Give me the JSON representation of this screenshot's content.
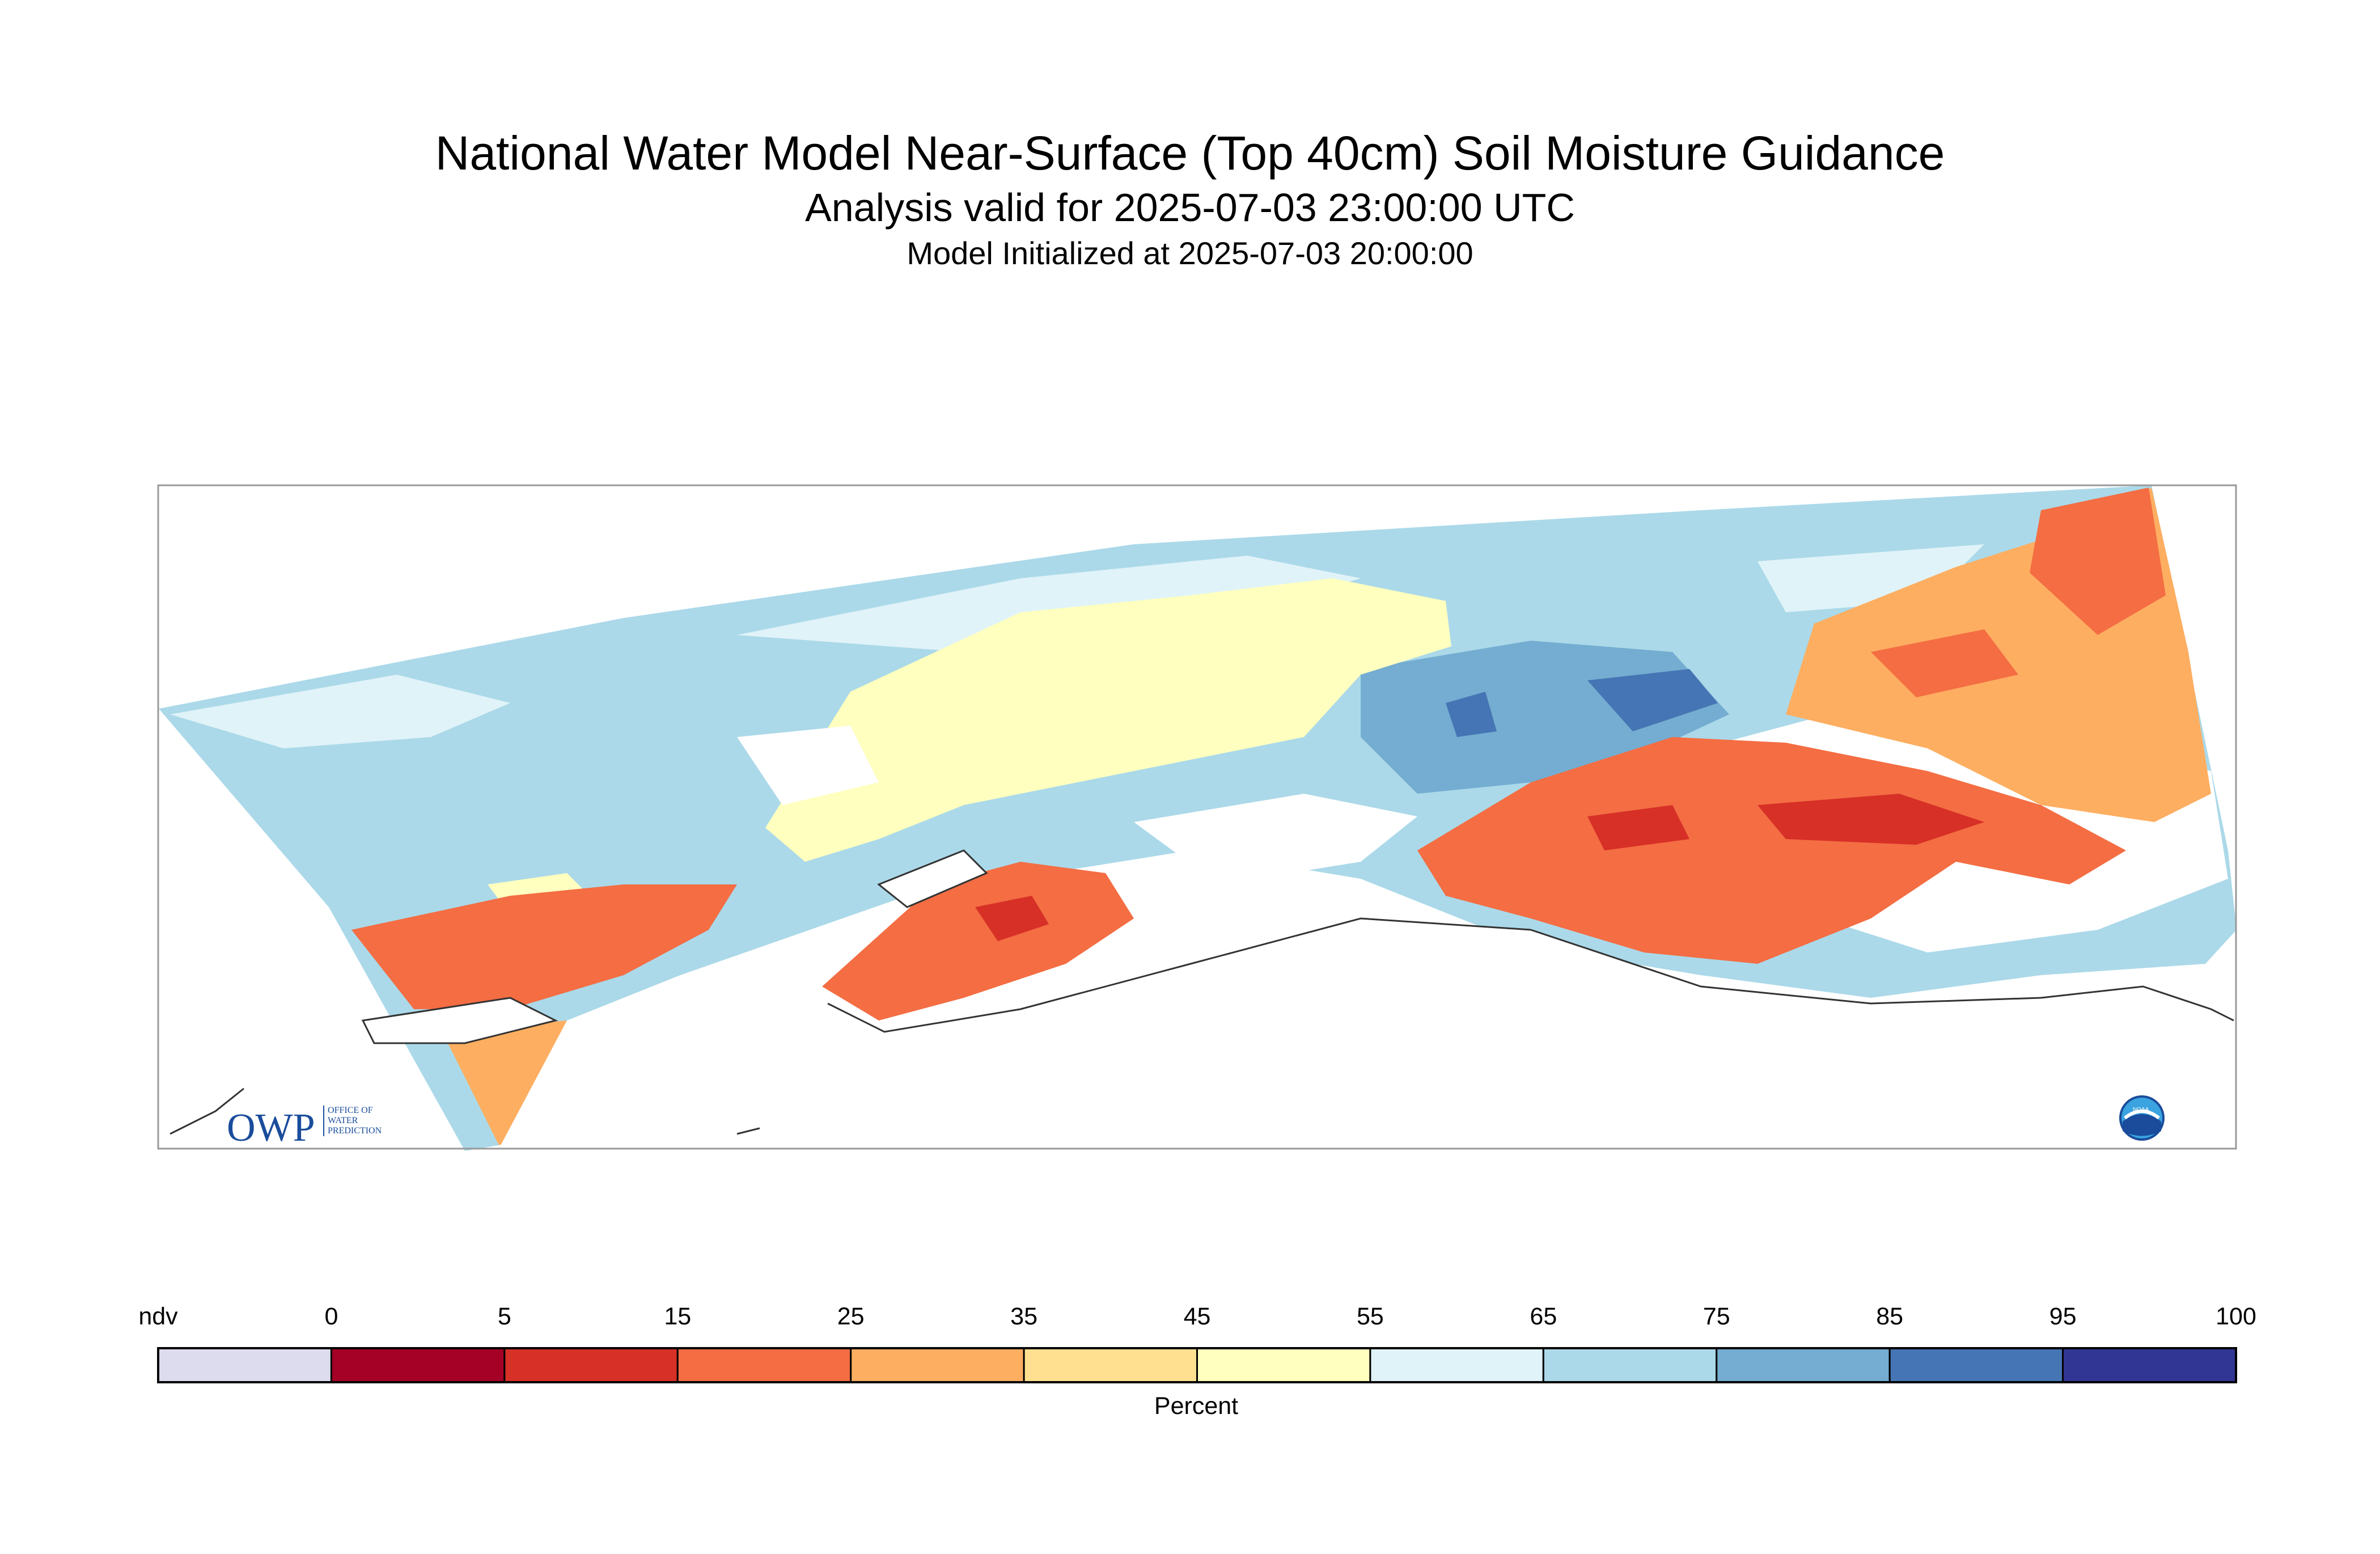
{
  "title": {
    "main": "National Water Model Near-Surface (Top 40cm) Soil Moisture Guidance",
    "analysis": "Analysis valid for 2025-07-03 23:00:00 UTC",
    "initialized": "Model Initialized at 2025-07-03 20:00:00"
  },
  "colorbar": {
    "label": "Percent",
    "ticks": [
      "ndv",
      "0",
      "5",
      "15",
      "25",
      "35",
      "45",
      "55",
      "65",
      "75",
      "85",
      "95",
      "100"
    ],
    "colors": [
      "#dcdcee",
      "#a50026",
      "#d73027",
      "#f46d43",
      "#fdae61",
      "#fee090",
      "#ffffbf",
      "#e0f3f8",
      "#abd9e9",
      "#74add1",
      "#4575b4",
      "#313695"
    ]
  },
  "logos": {
    "owp_mark": "OWP",
    "owp_line1": "OFFICE OF",
    "owp_line2": "WATER",
    "owp_line3": "PREDICTION",
    "noaa_mark": "NOAA"
  },
  "palette": {
    "dry_deep": "#d73027",
    "dry": "#f46d43",
    "dry_mid": "#fdae61",
    "mid": "#ffffbf",
    "wet_light": "#e0f3f8",
    "wet": "#abd9e9",
    "wet_mid": "#74add1",
    "wet_deep": "#4575b4"
  }
}
